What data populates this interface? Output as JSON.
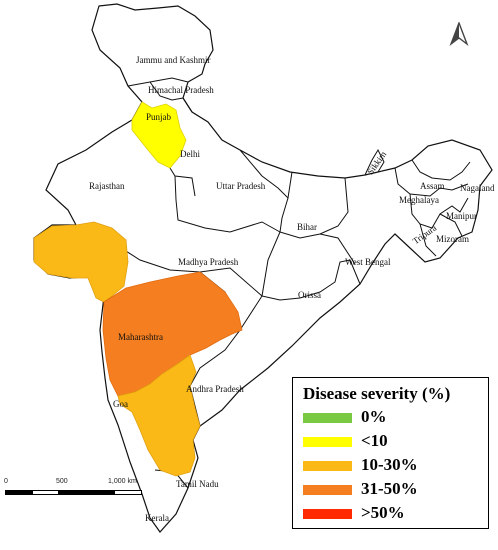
{
  "legend": {
    "title": "Disease severity (%)",
    "items": [
      {
        "label": "0%",
        "color": "#7ac943"
      },
      {
        "label": "<10",
        "color": "#ffff00"
      },
      {
        "label": "10-30%",
        "color": "#fbb917"
      },
      {
        "label": "31-50%",
        "color": "#f57f20"
      },
      {
        "label": ">50%",
        "color": "#ff2a00"
      }
    ]
  },
  "scale": {
    "tick_0": "0",
    "tick_1": "500",
    "tick_2": "1,000 km"
  },
  "north_arrow_icon": "north-arrow-icon",
  "states": {
    "jammu_kashmir": "Jammu and Kashmir",
    "himachal_pradesh": "Himachal Pradesh",
    "punjab": "Punjab",
    "delhi": "Delhi",
    "rajasthan": "Rajasthan",
    "uttar_pradesh": "Uttar Pradesh",
    "sikkim": "Sikkim",
    "assam": "Assam",
    "nagaland": "Nagaland",
    "meghalaya": "Meghalaya",
    "manipur": "Manipur",
    "tripura": "Tripura",
    "mizoram": "Mizoram",
    "bihar": "Bihar",
    "madhya_pradesh": "Madhya Pradesh",
    "west_bengal": "West Bengal",
    "orissa": "Orissa",
    "maharashtra": "Maharashtra",
    "andhra_pradesh": "Andhra Pradesh",
    "goa": "Goa",
    "tamil_nadu": "Tamil Nadu",
    "kerala": "Kerala"
  },
  "severity": {
    "punjab_haryana": "<10",
    "gujarat": "10-30%",
    "maharashtra": "31-50%",
    "karnataka": "10-30%"
  }
}
